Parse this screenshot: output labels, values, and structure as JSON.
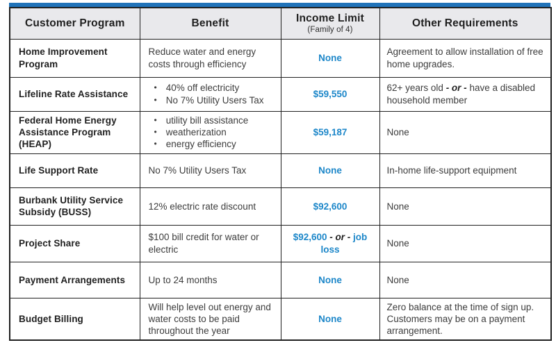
{
  "colors": {
    "accent_bar_blue": "#2073b9",
    "income_value_blue": "#1d87c9",
    "header_background": "#e9e9ec",
    "table_border": "#1f1f1f",
    "body_text": "#3c3c3c"
  },
  "table": {
    "headers": [
      {
        "label": "Customer Program"
      },
      {
        "label": "Benefit"
      },
      {
        "label": "Income Limit",
        "sublabel": "(Family of 4)"
      },
      {
        "label": "Other Requirements"
      }
    ],
    "rows": [
      {
        "program": "Home Improvement Program",
        "benefit": {
          "text": "Reduce water and energy costs through efficiency"
        },
        "income": [
          {
            "t": "None",
            "s": "blue"
          }
        ],
        "requirements": [
          {
            "t": "Agreement to allow installation of free home upgrades.",
            "s": "plain"
          }
        ]
      },
      {
        "program": "Lifeline Rate Assistance",
        "benefit": {
          "bullets": [
            "40% off electricity",
            "No 7% Utility Users Tax"
          ]
        },
        "income": [
          {
            "t": "$59,550",
            "s": "blue"
          }
        ],
        "requirements": [
          {
            "t": "62+ years old ",
            "s": "plain"
          },
          {
            "t": "- or -",
            "s": "or"
          },
          {
            "t": " have a disabled household member",
            "s": "plain"
          }
        ]
      },
      {
        "program": "Federal Home Energy Assistance Program (HEAP)",
        "benefit": {
          "bullets": [
            "utility bill assistance",
            "weatherization",
            "energy efficiency"
          ]
        },
        "income": [
          {
            "t": "$59,187",
            "s": "blue"
          }
        ],
        "requirements": [
          {
            "t": "None",
            "s": "plain"
          }
        ]
      },
      {
        "program": "Life Support Rate",
        "benefit": {
          "text": "No 7% Utility Users Tax"
        },
        "income": [
          {
            "t": "None",
            "s": "blue"
          }
        ],
        "requirements": [
          {
            "t": "In-home life-support equipment",
            "s": "plain"
          }
        ]
      },
      {
        "program": "Burbank Utility Service Subsidy (BUSS)",
        "benefit": {
          "text": "12% electric rate discount"
        },
        "income": [
          {
            "t": "$92,600",
            "s": "blue"
          }
        ],
        "requirements": [
          {
            "t": "None",
            "s": "plain"
          }
        ]
      },
      {
        "program": "Project Share",
        "benefit": {
          "text": "$100 bill credit for water or electric"
        },
        "income": [
          {
            "t": "$92,600 ",
            "s": "blue"
          },
          {
            "t": "- or -",
            "s": "or"
          },
          {
            "t": " job loss",
            "s": "blue"
          }
        ],
        "requirements": [
          {
            "t": "None",
            "s": "plain"
          }
        ]
      },
      {
        "program": "Payment Arrangements",
        "benefit": {
          "text": "Up to 24 months"
        },
        "income": [
          {
            "t": "None",
            "s": "blue"
          }
        ],
        "requirements": [
          {
            "t": "None",
            "s": "plain"
          }
        ]
      },
      {
        "program": "Budget Billing",
        "benefit": {
          "text": "Will help level out energy and water costs to be paid throughout the year"
        },
        "income": [
          {
            "t": "None",
            "s": "blue"
          }
        ],
        "requirements": [
          {
            "t": "Zero balance at the time of sign up. Customers may be on a payment arrangement.",
            "s": "plain"
          }
        ]
      }
    ]
  }
}
